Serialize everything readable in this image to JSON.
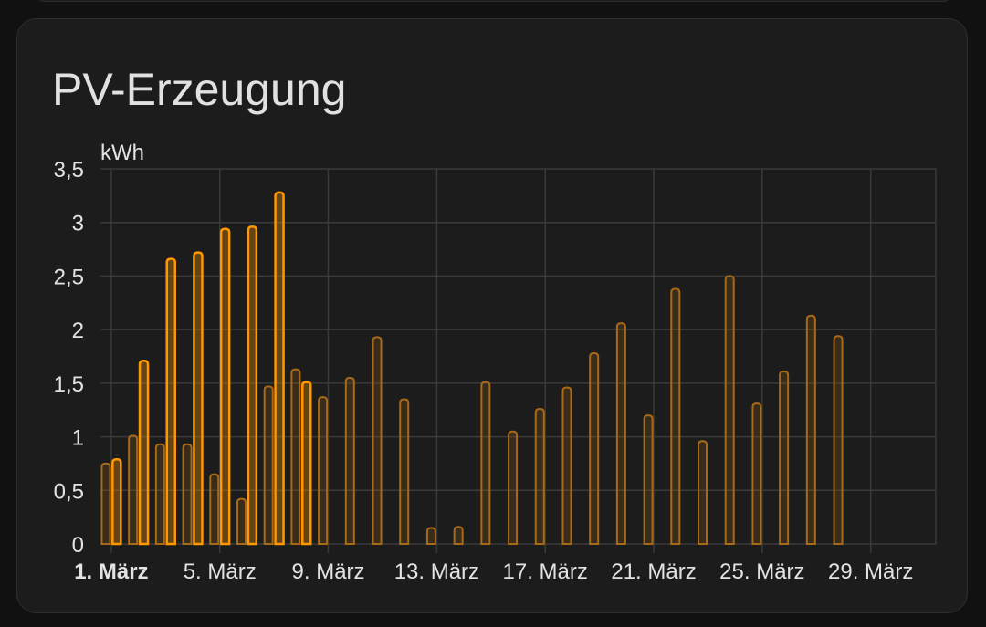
{
  "card": {
    "title": "PV-Erzeugung"
  },
  "chart_data": {
    "type": "bar",
    "title": "PV-Erzeugung",
    "ylabel": "kWh",
    "ylim": [
      0,
      3.5
    ],
    "y_ticks": [
      "0",
      "0,5",
      "1",
      "1,5",
      "2",
      "2,5",
      "3",
      "3,5"
    ],
    "y_tick_values": [
      0,
      0.5,
      1,
      1.5,
      2,
      2.5,
      3,
      3.5
    ],
    "x_tick_labels": [
      "1. März",
      "5. März",
      "9. März",
      "13. März",
      "17. März",
      "21. März",
      "25. März",
      "29. März"
    ],
    "x_tick_days": [
      1,
      5,
      9,
      13,
      17,
      21,
      25,
      29
    ],
    "x_range_days": [
      0.6,
      31.4
    ],
    "grid": true,
    "colors": {
      "bright": "#ff9800",
      "dim": "#a86a17",
      "grid": "#3a3a3a",
      "text": "#e3e3e3"
    },
    "series": [
      {
        "style": "dim",
        "days": [
          1,
          2,
          3,
          4,
          5,
          6,
          7,
          8,
          9,
          10,
          11,
          12,
          13,
          14,
          15,
          16,
          17,
          18,
          19,
          20,
          21,
          22,
          23,
          24,
          25,
          26,
          27,
          28
        ],
        "values": [
          0.75,
          1.01,
          0.93,
          0.93,
          0.65,
          0.42,
          1.47,
          1.63,
          1.37,
          1.55,
          1.93,
          1.35,
          0.15,
          0.16,
          1.51,
          1.05,
          1.26,
          1.46,
          1.78,
          2.06,
          1.2,
          2.38,
          0.96,
          2.5,
          1.31,
          1.61,
          2.13,
          1.94
        ]
      },
      {
        "style": "bright",
        "days": [
          1,
          2,
          3,
          4,
          5,
          6,
          7,
          8
        ],
        "values": [
          0.79,
          1.71,
          2.66,
          2.72,
          2.94,
          2.96,
          3.28,
          1.51
        ]
      }
    ]
  }
}
